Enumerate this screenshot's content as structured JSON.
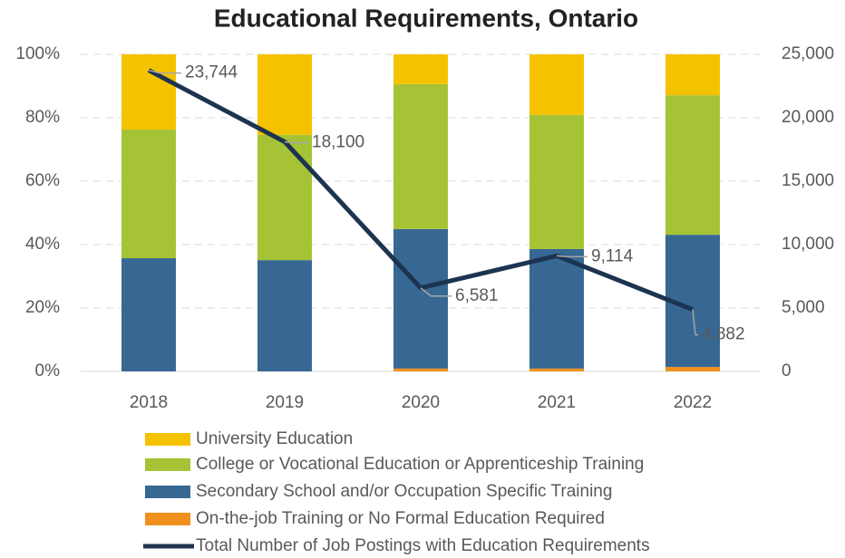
{
  "chart_data": {
    "type": "bar",
    "stacked": true,
    "title": "Educational Requirements, Ontario",
    "categories": [
      "2018",
      "2019",
      "2020",
      "2021",
      "2022"
    ],
    "series": [
      {
        "name": "University Education",
        "color": "#f5c200",
        "values": [
          23.7,
          25.4,
          9.4,
          19.1,
          12.9
        ]
      },
      {
        "name": "College or Vocational Education or Apprenticeship Training",
        "color": "#a5c335",
        "values": [
          40.6,
          39.5,
          45.7,
          42.3,
          44.0
        ]
      },
      {
        "name": "Secondary School and/or Occupation Specific Training",
        "color": "#376894",
        "values": [
          35.7,
          35.1,
          44.0,
          37.7,
          41.7
        ]
      },
      {
        "name": "On-the-job Training or No Formal Education Required",
        "color": "#f0901e",
        "values": [
          0,
          0,
          0.9,
          0.9,
          1.4
        ]
      },
      {
        "name": "Total Number of Job Postings with Education Requirements",
        "type": "line",
        "axis": "y2",
        "color": "#1c3450",
        "values": [
          23744,
          18100,
          6581,
          9114,
          4882
        ],
        "value_labels": [
          "23,744",
          "18,100",
          "6,581",
          "9,114",
          "4,882"
        ]
      }
    ],
    "ylim": [
      0,
      100
    ],
    "yticks": [
      {
        "value": 0,
        "label": "0%"
      },
      {
        "value": 20,
        "label": "20%"
      },
      {
        "value": 40,
        "label": "40%"
      },
      {
        "value": 60,
        "label": "60%"
      },
      {
        "value": 80,
        "label": "80%"
      },
      {
        "value": 100,
        "label": "100%"
      }
    ],
    "y2lim": [
      0,
      25000
    ],
    "y2ticks": [
      0,
      {
        "value": 5000,
        "label": "5,000"
      },
      {
        "value": 10000,
        "label": "10,000"
      },
      {
        "value": 15000,
        "label": "15,000"
      },
      {
        "value": 20000,
        "label": "20,000"
      },
      {
        "value": 25000,
        "label": "25,000"
      }
    ],
    "grid": true
  }
}
